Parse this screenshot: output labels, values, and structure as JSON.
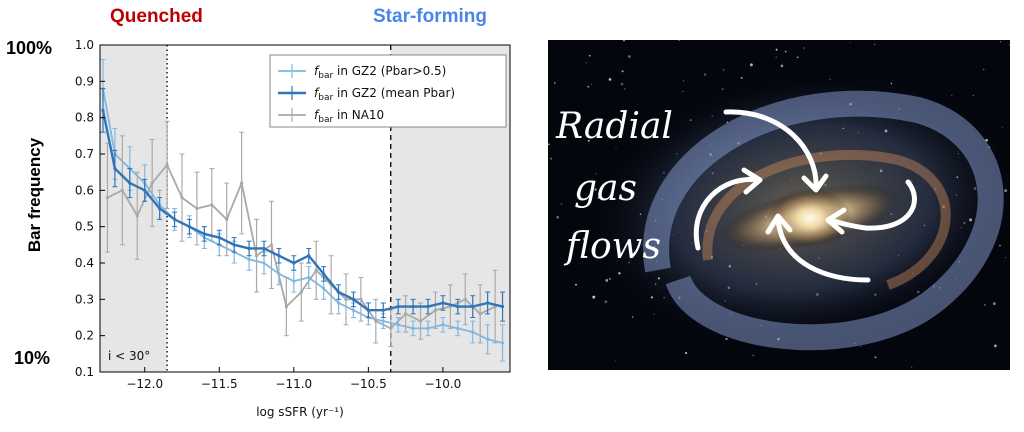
{
  "labels": {
    "quenched": "Quenched",
    "star_forming": "Star-forming",
    "pct_high": "100%",
    "pct_low": "10%",
    "inset_note": "i < 30°",
    "annotation": "Radial gas flows"
  },
  "colors": {
    "quenched": "#c00000",
    "star_forming": "#4a86e8",
    "gz2_p05": "#7fb8e0",
    "gz2_mean": "#2f75b8",
    "na10": "#a9a9a9",
    "shade": "#e6e6e6"
  },
  "image_description": "",
  "chart_data": {
    "type": "line",
    "xlabel": "log sSFR (yr⁻¹)",
    "ylabel": "Bar frequency",
    "xlim": [
      -12.3,
      -9.55
    ],
    "ylim": [
      0.1,
      1.0
    ],
    "xticks": [
      -12.0,
      -11.5,
      -11.0,
      -10.5,
      -10.0
    ],
    "xtick_labels": [
      "−12.0",
      "−11.5",
      "−11.0",
      "−10.5",
      "−10.0"
    ],
    "yticks": [
      0.1,
      0.2,
      0.3,
      0.4,
      0.5,
      0.6,
      0.7,
      0.8,
      0.9,
      1.0
    ],
    "ytick_labels": [
      "0.1",
      "0.2",
      "0.3",
      "0.4",
      "0.5",
      "0.6",
      "0.7",
      "0.8",
      "0.9",
      "1.0"
    ],
    "shaded_regions": [
      [
        -12.3,
        -11.85
      ],
      [
        -10.35,
        -9.55
      ]
    ],
    "vlines": [
      {
        "x": -11.85,
        "style": "dotted"
      },
      {
        "x": -10.35,
        "style": "dashed"
      }
    ],
    "legend": {
      "placement": "top-right"
    },
    "series": [
      {
        "name": "fbar in NA10",
        "legend_main": "f",
        "legend_sub": "bar",
        "legend_rest": " in NA10",
        "color": "#a9a9a9",
        "x": [
          -12.25,
          -12.15,
          -12.05,
          -11.95,
          -11.85,
          -11.75,
          -11.65,
          -11.55,
          -11.45,
          -11.35,
          -11.25,
          -11.15,
          -11.05,
          -10.95,
          -10.85,
          -10.75,
          -10.65,
          -10.55,
          -10.45,
          -10.35,
          -10.25,
          -10.15,
          -10.05,
          -9.95,
          -9.85,
          -9.75,
          -9.65
        ],
        "y": [
          0.58,
          0.6,
          0.53,
          0.62,
          0.67,
          0.58,
          0.55,
          0.56,
          0.52,
          0.62,
          0.42,
          0.45,
          0.28,
          0.32,
          0.38,
          0.34,
          0.3,
          0.3,
          0.24,
          0.22,
          0.26,
          0.24,
          0.27,
          0.28,
          0.3,
          0.26,
          0.28
        ],
        "err": [
          0.15,
          0.15,
          0.12,
          0.12,
          0.12,
          0.12,
          0.1,
          0.1,
          0.1,
          0.14,
          0.1,
          0.12,
          0.08,
          0.08,
          0.08,
          0.08,
          0.07,
          0.06,
          0.06,
          0.05,
          0.05,
          0.05,
          0.05,
          0.06,
          0.07,
          0.08,
          0.1
        ]
      },
      {
        "name": "fbar in GZ2 (Pbar>0.5)",
        "legend_main": "f",
        "legend_sub": "bar",
        "legend_rest": " in GZ2 (Pbar>0.5)",
        "color": "#7fb8e0",
        "x": [
          -12.28,
          -12.2,
          -12.1,
          -12.0,
          -11.9,
          -11.8,
          -11.7,
          -11.6,
          -11.5,
          -11.4,
          -11.3,
          -11.2,
          -11.1,
          -11.0,
          -10.9,
          -10.8,
          -10.7,
          -10.6,
          -10.5,
          -10.4,
          -10.3,
          -10.2,
          -10.1,
          -10.0,
          -9.9,
          -9.8,
          -9.7,
          -9.6
        ],
        "y": [
          0.88,
          0.7,
          0.66,
          0.62,
          0.56,
          0.52,
          0.5,
          0.47,
          0.45,
          0.43,
          0.41,
          0.4,
          0.37,
          0.35,
          0.36,
          0.33,
          0.29,
          0.27,
          0.25,
          0.24,
          0.23,
          0.22,
          0.22,
          0.23,
          0.22,
          0.21,
          0.19,
          0.18
        ],
        "err": [
          0.08,
          0.07,
          0.06,
          0.05,
          0.04,
          0.03,
          0.03,
          0.03,
          0.03,
          0.03,
          0.03,
          0.03,
          0.03,
          0.03,
          0.03,
          0.03,
          0.03,
          0.02,
          0.02,
          0.02,
          0.02,
          0.02,
          0.02,
          0.02,
          0.02,
          0.03,
          0.04,
          0.05
        ]
      },
      {
        "name": "fbar in GZ2 (mean Pbar)",
        "legend_main": "f",
        "legend_sub": "bar",
        "legend_rest": " in GZ2 (mean Pbar)",
        "color": "#2f75b8",
        "x": [
          -12.28,
          -12.2,
          -12.1,
          -12.0,
          -11.9,
          -11.8,
          -11.7,
          -11.6,
          -11.5,
          -11.4,
          -11.3,
          -11.2,
          -11.1,
          -11.0,
          -10.9,
          -10.8,
          -10.7,
          -10.6,
          -10.5,
          -10.4,
          -10.3,
          -10.2,
          -10.1,
          -10.0,
          -9.9,
          -9.8,
          -9.7,
          -9.6
        ],
        "y": [
          0.82,
          0.66,
          0.62,
          0.6,
          0.55,
          0.52,
          0.5,
          0.48,
          0.47,
          0.45,
          0.44,
          0.44,
          0.42,
          0.4,
          0.42,
          0.37,
          0.32,
          0.3,
          0.27,
          0.27,
          0.28,
          0.28,
          0.28,
          0.29,
          0.28,
          0.28,
          0.29,
          0.28
        ],
        "err": [
          0.06,
          0.05,
          0.04,
          0.03,
          0.03,
          0.02,
          0.02,
          0.02,
          0.02,
          0.02,
          0.02,
          0.02,
          0.02,
          0.02,
          0.02,
          0.02,
          0.02,
          0.02,
          0.02,
          0.02,
          0.02,
          0.02,
          0.02,
          0.02,
          0.02,
          0.03,
          0.03,
          0.04
        ]
      }
    ]
  }
}
